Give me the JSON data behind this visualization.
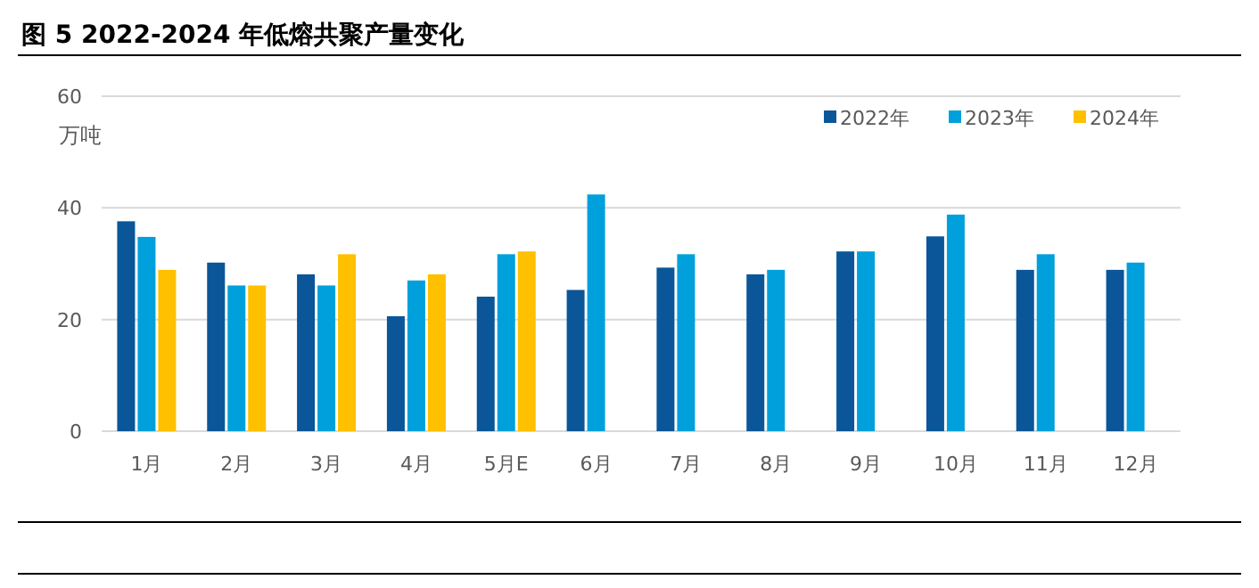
{
  "chart_data": {
    "type": "bar",
    "title": "图 5 2022-2024 年低熔共聚产量变化",
    "ylabel": "万吨",
    "categories": [
      "1月",
      "2月",
      "3月",
      "4月",
      "5月E",
      "6月",
      "7月",
      "8月",
      "9月",
      "10月",
      "11月",
      "12月"
    ],
    "series": [
      {
        "name": "2022年",
        "color": "#0a5699",
        "values": [
          37.6,
          30.2,
          28.1,
          20.6,
          24.1,
          25.3,
          29.3,
          28.1,
          32.2,
          34.9,
          28.9,
          28.9
        ]
      },
      {
        "name": "2023年",
        "color": "#00a0dc",
        "values": [
          34.8,
          26.1,
          26.1,
          27.0,
          31.7,
          42.4,
          31.7,
          28.9,
          32.2,
          38.8,
          31.7,
          30.2
        ]
      },
      {
        "name": "2024年",
        "color": "#ffc000",
        "values": [
          28.9,
          26.1,
          31.7,
          28.1,
          32.2,
          null,
          null,
          null,
          null,
          null,
          null,
          null
        ]
      }
    ],
    "ylim": [
      0,
      60
    ],
    "yticks": [
      0,
      20,
      40,
      60
    ],
    "grid": "y",
    "legend": "top right"
  }
}
